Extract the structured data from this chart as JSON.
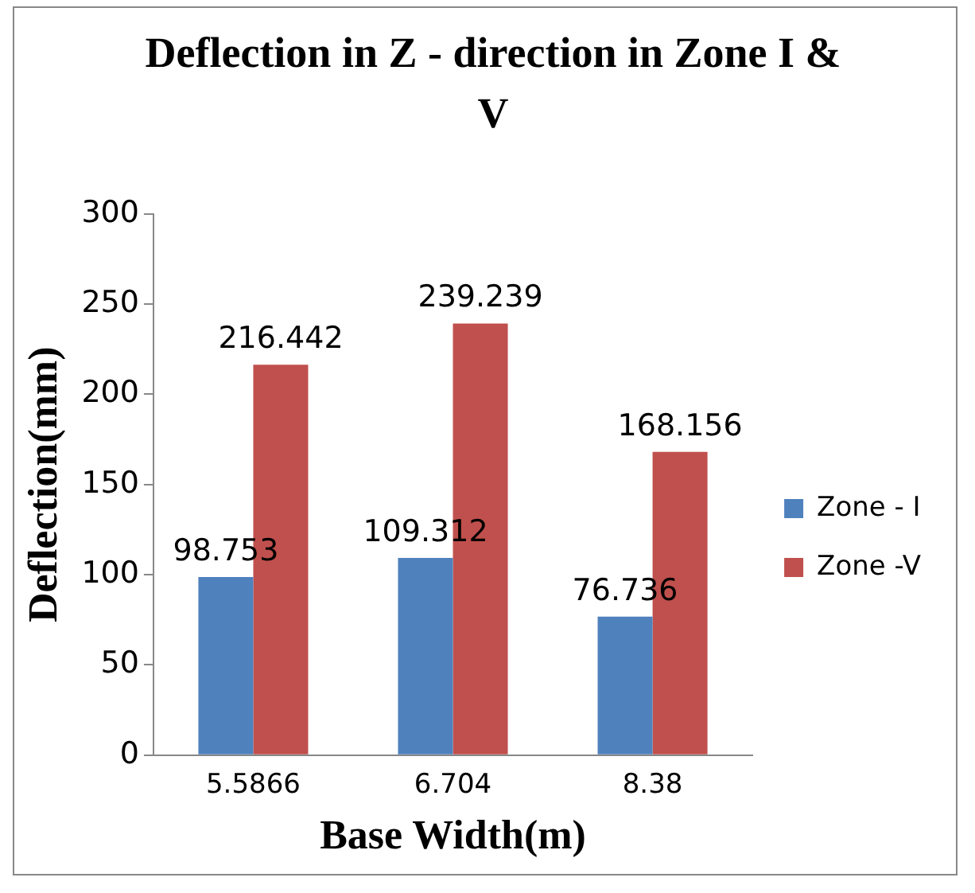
{
  "chart_data": {
    "type": "bar",
    "title": "Deflection in Z - direction in Zone I & V",
    "xlabel": "Base Width(m)",
    "ylabel": "Deflection(mm)",
    "categories": [
      "5.5866",
      "6.704",
      "8.38"
    ],
    "series": [
      {
        "name": "Zone - I",
        "color": "#4f81bd",
        "values": [
          98.753,
          109.312,
          76.736
        ]
      },
      {
        "name": "Zone -V",
        "color": "#c0504d",
        "values": [
          216.442,
          239.239,
          168.156
        ]
      }
    ],
    "ylim": [
      0,
      300
    ],
    "yticks": [
      0,
      50,
      100,
      150,
      200,
      250,
      300
    ],
    "grid": false,
    "legend": "right",
    "data_labels": true
  }
}
